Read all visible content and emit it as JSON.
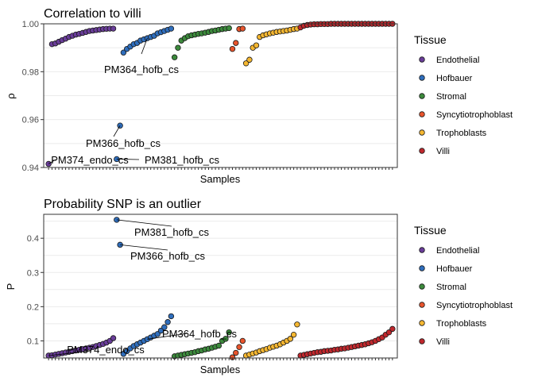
{
  "tissue_colors": {
    "Endothelial": "#6a3d9a",
    "Hofbauer": "#2f6ebd",
    "Stromal": "#3c8a3c",
    "Syncytiotrophoblast": "#e8542c",
    "Trophoblasts": "#f5b731",
    "Villi": "#c0282d"
  },
  "chart_data": [
    {
      "type": "scatter",
      "title": "Correlation to villi",
      "xlabel": "Samples",
      "ylabel": "ρ",
      "ylim": [
        0.94,
        1.0
      ],
      "yticks": [
        0.94,
        0.96,
        0.98,
        1.0
      ],
      "ytick_labels": [
        "0.94",
        "0.96",
        "0.98",
        "1.00"
      ],
      "grid": true,
      "legend": {
        "title": "Tissue",
        "position": "right",
        "entries": [
          "Endothelial",
          "Hofbauer",
          "Stromal",
          "Syncytiotrophoblast",
          "Trophoblasts",
          "Villi"
        ]
      },
      "series": [
        {
          "name": "Endothelial",
          "values": [
            0.9415,
            0.9915,
            0.9918,
            0.9925,
            0.9932,
            0.9938,
            0.9945,
            0.995,
            0.9955,
            0.9958,
            0.9962,
            0.9966,
            0.997,
            0.9972,
            0.9974,
            0.9976,
            0.9978,
            0.9979,
            0.998,
            0.998
          ]
        },
        {
          "name": "Hofbauer",
          "values": [
            0.9435,
            0.9575,
            0.988,
            0.9895,
            0.9905,
            0.9915,
            0.992,
            0.993,
            0.9935,
            0.994,
            0.9945,
            0.995,
            0.996,
            0.9965,
            0.997,
            0.9975,
            0.998
          ]
        },
        {
          "name": "Stromal",
          "values": [
            0.986,
            0.99,
            0.993,
            0.994,
            0.9948,
            0.9952,
            0.9955,
            0.9958,
            0.996,
            0.9963,
            0.9966,
            0.997,
            0.9972,
            0.9975,
            0.9978,
            0.998,
            0.9982
          ]
        },
        {
          "name": "Syncytiotrophoblast",
          "values": [
            0.9895,
            0.992,
            0.9978,
            0.998
          ]
        },
        {
          "name": "Trophoblasts",
          "values": [
            0.9835,
            0.985,
            0.99,
            0.991,
            0.9945,
            0.9952,
            0.9956,
            0.996,
            0.9963,
            0.9966,
            0.9968,
            0.997,
            0.9972,
            0.9975,
            0.9978,
            0.998
          ]
        },
        {
          "name": "Villi",
          "values": [
            0.9985,
            0.9992,
            0.9995,
            0.9997,
            0.9998,
            0.9998,
            0.9999,
            0.9999,
            0.9999,
            1.0,
            1.0,
            1.0,
            1.0,
            1.0,
            1.0,
            1.0,
            1.0,
            1.0,
            1.0,
            1.0,
            1.0,
            1.0,
            1.0,
            1.0,
            1.0,
            1.0,
            1.0,
            1.0
          ]
        }
      ],
      "annotations": [
        {
          "text": "PM364_hofb_cs",
          "series": "Hofbauer",
          "index": 9
        },
        {
          "text": "PM366_hofb_cs",
          "series": "Hofbauer",
          "index": 1
        },
        {
          "text": "PM374_endo_cs",
          "series": "Endothelial",
          "index": 0
        },
        {
          "text": "PM381_hofb_cs",
          "series": "Hofbauer",
          "index": 0
        }
      ]
    },
    {
      "type": "scatter",
      "title": "Probability SNP is an outlier",
      "xlabel": "Samples",
      "ylabel": "P",
      "ylim": [
        0.05,
        0.47
      ],
      "yticks": [
        0.1,
        0.2,
        0.3,
        0.4
      ],
      "ytick_labels": [
        "0.1",
        "0.2",
        "0.3",
        "0.4"
      ],
      "grid": true,
      "legend": {
        "title": "Tissue",
        "position": "right",
        "entries": [
          "Endothelial",
          "Hofbauer",
          "Stromal",
          "Syncytiotrophoblast",
          "Trophoblasts",
          "Villi"
        ]
      },
      "series": [
        {
          "name": "Endothelial",
          "values": [
            0.057,
            0.058,
            0.06,
            0.062,
            0.064,
            0.066,
            0.068,
            0.07,
            0.072,
            0.074,
            0.076,
            0.078,
            0.08,
            0.082,
            0.085,
            0.088,
            0.091,
            0.095,
            0.1,
            0.108
          ]
        },
        {
          "name": "Hofbauer",
          "values": [
            0.454,
            0.381,
            0.062,
            0.07,
            0.078,
            0.085,
            0.09,
            0.095,
            0.1,
            0.105,
            0.11,
            0.115,
            0.12,
            0.13,
            0.14,
            0.155,
            0.172
          ]
        },
        {
          "name": "Stromal",
          "values": [
            0.055,
            0.057,
            0.059,
            0.061,
            0.063,
            0.065,
            0.067,
            0.07,
            0.072,
            0.075,
            0.077,
            0.08,
            0.083,
            0.086,
            0.1,
            0.106,
            0.125
          ]
        },
        {
          "name": "Syncytiotrophoblast",
          "values": [
            0.052,
            0.065,
            0.082,
            0.1
          ]
        },
        {
          "name": "Trophoblasts",
          "values": [
            0.057,
            0.06,
            0.063,
            0.066,
            0.07,
            0.073,
            0.076,
            0.08,
            0.083,
            0.086,
            0.09,
            0.095,
            0.1,
            0.106,
            0.118,
            0.148
          ]
        },
        {
          "name": "Villi",
          "values": [
            0.057,
            0.059,
            0.061,
            0.063,
            0.065,
            0.067,
            0.068,
            0.07,
            0.071,
            0.072,
            0.074,
            0.075,
            0.077,
            0.078,
            0.08,
            0.082,
            0.084,
            0.086,
            0.088,
            0.09,
            0.093,
            0.096,
            0.1,
            0.105,
            0.11,
            0.118,
            0.125,
            0.135
          ]
        }
      ],
      "annotations": [
        {
          "text": "PM381_hofb_cs",
          "series": "Hofbauer",
          "index": 0
        },
        {
          "text": "PM366_hofb_cs",
          "series": "Hofbauer",
          "index": 1
        },
        {
          "text": "PM364_hofb_cs",
          "series": "Hofbauer",
          "index": 9
        },
        {
          "text": "PM374_endo_cs",
          "series": "Endothelial",
          "index": 0
        }
      ]
    }
  ]
}
